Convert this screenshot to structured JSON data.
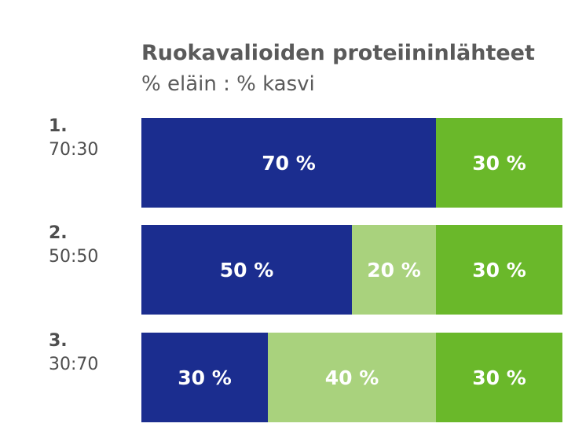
{
  "chart_data": {
    "type": "bar",
    "orientation": "horizontal",
    "stacked": true,
    "title": "Ruokavalioiden proteiininlähteet",
    "subtitle": "% eläin : % kasvi",
    "xlim": [
      0,
      100
    ],
    "grid": false,
    "rows": [
      {
        "number": "1.",
        "ratio": "70:30",
        "segments": [
          {
            "value": 70,
            "label": "70 %",
            "color": "#1b2d8f"
          },
          {
            "value": 30,
            "label": "30 %",
            "color": "#6ab82a"
          }
        ]
      },
      {
        "number": "2.",
        "ratio": "50:50",
        "segments": [
          {
            "value": 50,
            "label": "50 %",
            "color": "#1b2d8f"
          },
          {
            "value": 20,
            "label": "20 %",
            "color": "#a9d27d"
          },
          {
            "value": 30,
            "label": "30 %",
            "color": "#6ab82a"
          }
        ]
      },
      {
        "number": "3.",
        "ratio": "30:70",
        "segments": [
          {
            "value": 30,
            "label": "30 %",
            "color": "#1b2d8f"
          },
          {
            "value": 40,
            "label": "40 %",
            "color": "#a9d27d"
          },
          {
            "value": 30,
            "label": "30 %",
            "color": "#6ab82a"
          }
        ]
      }
    ]
  }
}
